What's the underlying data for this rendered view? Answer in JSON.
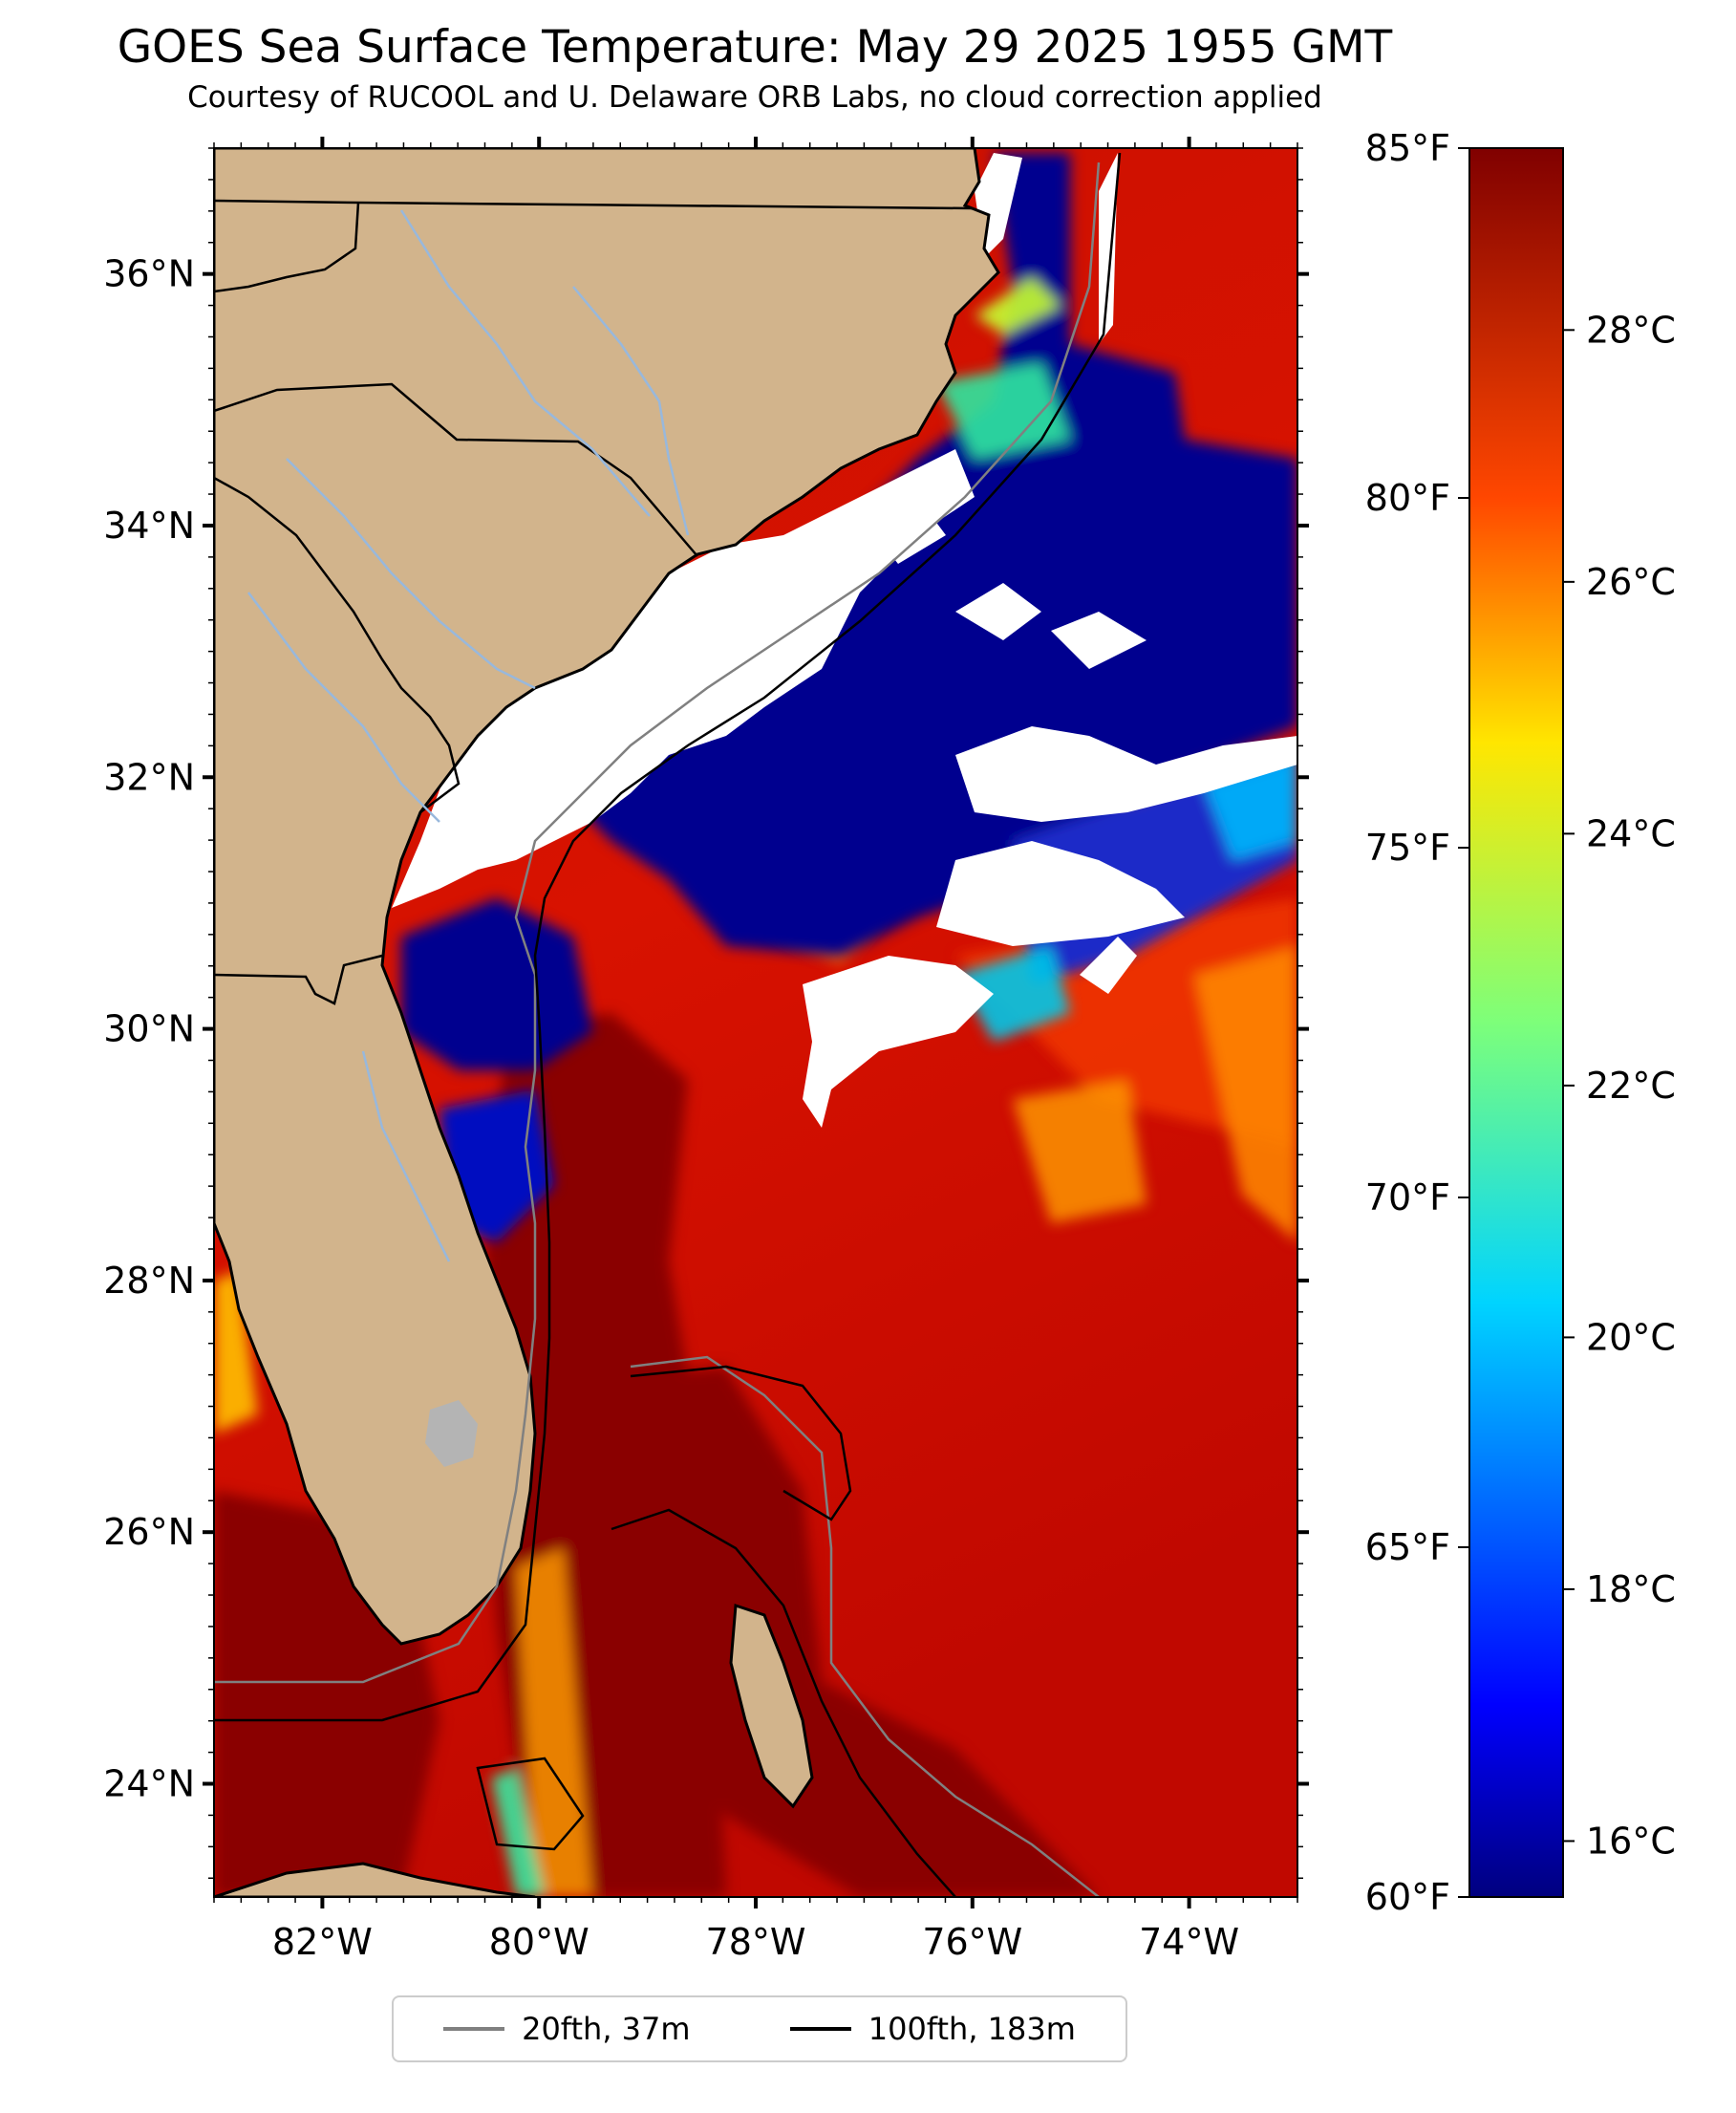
{
  "title": "GOES Sea Surface Temperature: May 29 2025 1955 GMT",
  "subtitle": "Courtesy of RUCOOL and U. Delaware ORB Labs, no cloud correction applied",
  "colors": {
    "land": "#d2b48c",
    "cloud_mask": "#ffffff",
    "lake": "#b4b4b4",
    "river": "#98b8dc",
    "coast": "#000000"
  },
  "map": {
    "lon_range": [
      -83.0,
      -73.0
    ],
    "lat_range": [
      23.1,
      37.0
    ],
    "lon_ticks": [
      "82°W",
      "80°W",
      "78°W",
      "76°W",
      "74°W"
    ],
    "lat_ticks": [
      "24°N",
      "26°N",
      "28°N",
      "30°N",
      "32°N",
      "34°N",
      "36°N"
    ]
  },
  "colorbar": {
    "colormap": "jet",
    "fahrenheit_ticks": [
      "60°F",
      "65°F",
      "70°F",
      "75°F",
      "80°F",
      "85°F"
    ],
    "celsius_ticks": [
      "16°C",
      "18°C",
      "20°C",
      "22°C",
      "24°C",
      "26°C",
      "28°C"
    ]
  },
  "legend": [
    {
      "label": "20fth, 37m",
      "color": "#808080"
    },
    {
      "label": "100fth, 183m",
      "color": "#000000"
    }
  ]
}
